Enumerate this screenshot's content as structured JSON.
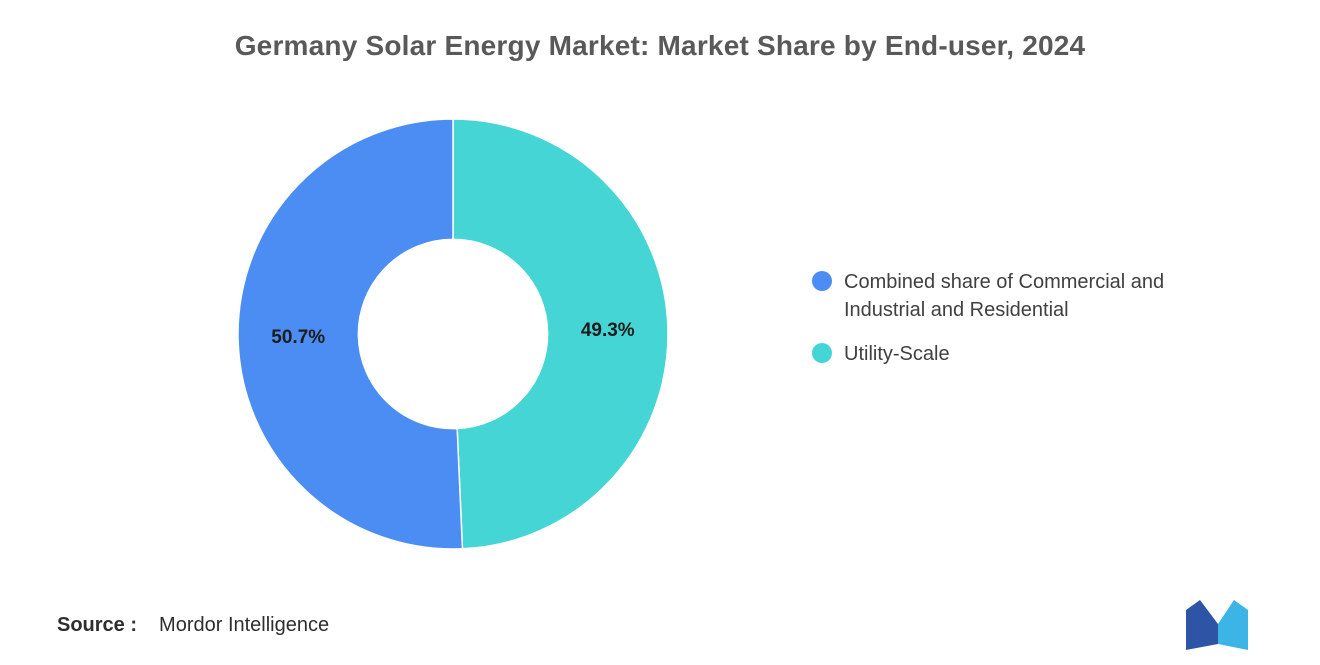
{
  "title": "Germany Solar Energy Market: Market Share by End-user, 2024",
  "chart_data": {
    "type": "pie",
    "subtype": "donut",
    "title": "Germany Solar Energy Market: Market Share by End-user, 2024",
    "slices": [
      {
        "label": "Combined share of Commercial and Industrial and Residential",
        "value": 50.7,
        "data_label": "50.7%",
        "color": "#4B8DF3"
      },
      {
        "label": "Utility-Scale",
        "value": 49.3,
        "data_label": "49.3%",
        "color": "#46D5D5"
      }
    ],
    "clockwise_order_from_top": [
      1,
      0
    ],
    "inner_radius_ratio": 0.44,
    "legend_position": "right",
    "data_labels_inside": true
  },
  "legend": {
    "items": [
      {
        "label": "Combined share of Commercial and Industrial and Residential",
        "color": "#4B8DF3"
      },
      {
        "label": "Utility-Scale",
        "color": "#46D5D5"
      }
    ]
  },
  "footer": {
    "source_label": "Source :",
    "source_value": "Mordor Intelligence"
  },
  "logo": {
    "name": "mordor-intelligence-logo",
    "color_left": "#2E55A5",
    "color_right": "#3CB4E5"
  }
}
